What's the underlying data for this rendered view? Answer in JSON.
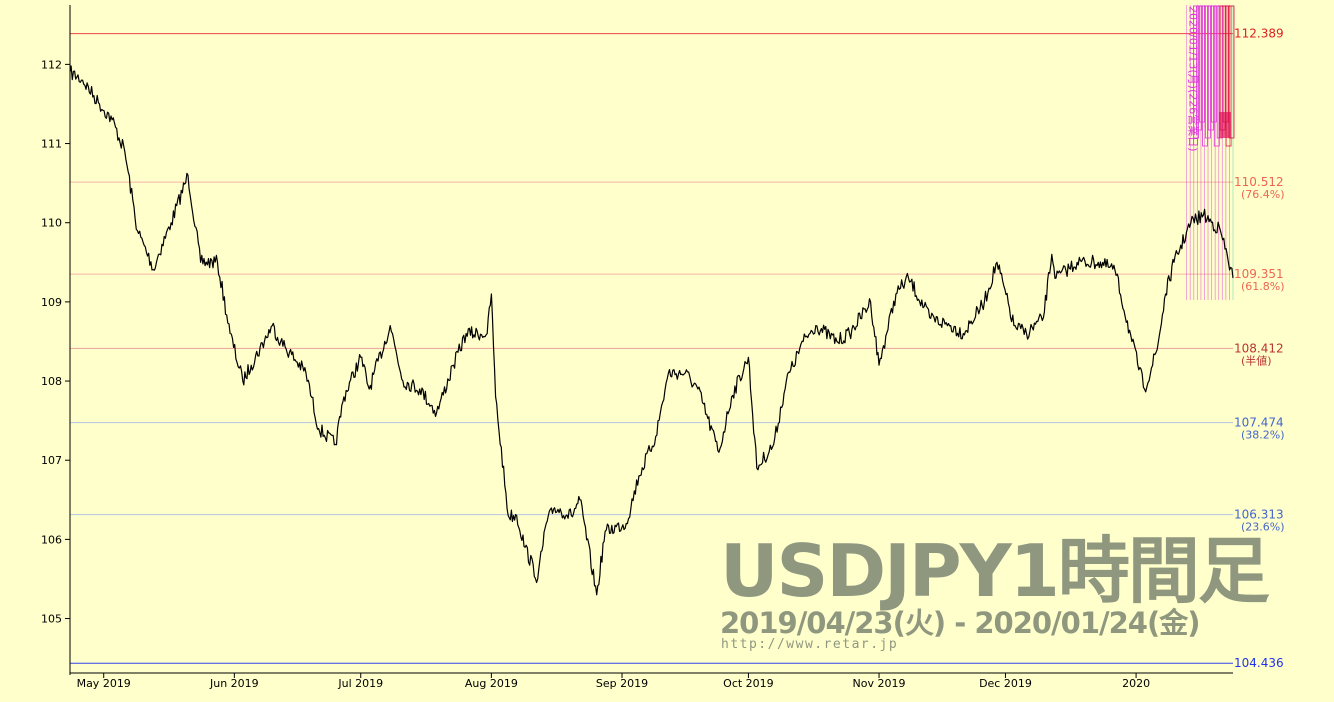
{
  "chart_data": {
    "type": "line",
    "series_style": "ohlc-1h",
    "pair": "USDJPY",
    "ylim": [
      104.35,
      112.75
    ],
    "yticks": [
      105,
      106,
      107,
      108,
      109,
      110,
      111,
      112
    ],
    "xlim": [
      "2019-04-23",
      "2020-01-24"
    ],
    "xticks": [
      {
        "date": "2019-05-01",
        "label": "May 2019"
      },
      {
        "date": "2019-06-01",
        "label": "Jun 2019"
      },
      {
        "date": "2019-07-01",
        "label": "Jul 2019"
      },
      {
        "date": "2019-08-01",
        "label": "Aug 2019"
      },
      {
        "date": "2019-09-01",
        "label": "Sep 2019"
      },
      {
        "date": "2019-10-01",
        "label": "Oct 2019"
      },
      {
        "date": "2019-11-01",
        "label": "Nov 2019"
      },
      {
        "date": "2019-12-01",
        "label": "Dec 2019"
      },
      {
        "date": "2020-01-01",
        "label": "2020"
      }
    ],
    "levels": [
      {
        "value": 112.389,
        "label": "112.389",
        "pct": "",
        "color": "#dd2222",
        "line": "#ee4444"
      },
      {
        "value": 110.512,
        "label": "110.512",
        "pct": "(76.4%)",
        "color": "#ee6655",
        "line": "#f4b4a8"
      },
      {
        "value": 109.351,
        "label": "109.351",
        "pct": "(61.8%)",
        "color": "#ee6655",
        "line": "#f4b4a8"
      },
      {
        "value": 108.412,
        "label": "108.412",
        "pct": "(半値)",
        "color": "#bb3333",
        "line": "#e8a0a0"
      },
      {
        "value": 107.474,
        "label": "107.474",
        "pct": "(38.2%)",
        "color": "#4466cc",
        "line": "#b4c4e4"
      },
      {
        "value": 106.313,
        "label": "106.313",
        "pct": "(23.6%)",
        "color": "#4466cc",
        "line": "#b4c4e4"
      },
      {
        "value": 104.436,
        "label": "104.436",
        "pct": "",
        "color": "#2233ee",
        "line": "#3344ee"
      }
    ],
    "x": [
      "2019-04-23",
      "2019-04-26",
      "2019-04-30",
      "2019-05-03",
      "2019-05-06",
      "2019-05-09",
      "2019-05-13",
      "2019-05-14",
      "2019-05-17",
      "2019-05-21",
      "2019-05-24",
      "2019-05-28",
      "2019-05-31",
      "2019-06-03",
      "2019-06-05",
      "2019-06-10",
      "2019-06-12",
      "2019-06-18",
      "2019-06-21",
      "2019-06-25",
      "2019-06-27",
      "2019-07-01",
      "2019-07-03",
      "2019-07-08",
      "2019-07-11",
      "2019-07-15",
      "2019-07-19",
      "2019-07-23",
      "2019-07-26",
      "2019-07-31",
      "2019-08-01",
      "2019-08-02",
      "2019-08-05",
      "2019-08-07",
      "2019-08-09",
      "2019-08-12",
      "2019-08-14",
      "2019-08-16",
      "2019-08-20",
      "2019-08-22",
      "2019-08-26",
      "2019-08-28",
      "2019-09-02",
      "2019-09-05",
      "2019-09-09",
      "2019-09-12",
      "2019-09-16",
      "2019-09-19",
      "2019-09-24",
      "2019-09-27",
      "2019-10-01",
      "2019-10-03",
      "2019-10-07",
      "2019-10-10",
      "2019-10-14",
      "2019-10-17",
      "2019-10-22",
      "2019-10-25",
      "2019-10-30",
      "2019-11-01",
      "2019-11-05",
      "2019-11-08",
      "2019-11-13",
      "2019-11-18",
      "2019-11-21",
      "2019-11-26",
      "2019-11-29",
      "2019-12-03",
      "2019-12-06",
      "2019-12-10",
      "2019-12-12",
      "2019-12-13",
      "2019-12-18",
      "2019-12-23",
      "2019-12-27",
      "2019-12-31",
      "2020-01-03",
      "2020-01-06",
      "2020-01-08",
      "2020-01-10",
      "2020-01-14",
      "2020-01-17",
      "2020-01-21",
      "2020-01-24"
    ],
    "y": [
      111.9,
      111.8,
      111.5,
      111.3,
      110.9,
      109.9,
      109.4,
      109.6,
      110.0,
      110.6,
      109.5,
      109.5,
      108.6,
      108.0,
      108.2,
      108.7,
      108.5,
      108.1,
      107.4,
      107.2,
      107.8,
      108.3,
      107.9,
      108.7,
      108.0,
      107.9,
      107.6,
      108.2,
      108.6,
      108.6,
      109.1,
      107.8,
      106.3,
      106.3,
      105.9,
      105.5,
      106.2,
      106.4,
      106.3,
      106.5,
      105.3,
      106.1,
      106.2,
      106.8,
      107.3,
      108.1,
      108.1,
      107.9,
      107.1,
      107.8,
      108.3,
      106.9,
      107.2,
      108.0,
      108.5,
      108.7,
      108.5,
      108.6,
      109.0,
      108.2,
      109.1,
      109.3,
      108.8,
      108.7,
      108.6,
      109.0,
      109.5,
      108.7,
      108.6,
      108.8,
      109.6,
      109.3,
      109.5,
      109.5,
      109.4,
      108.5,
      107.9,
      108.4,
      109.1,
      109.5,
      110.0,
      110.1,
      109.9,
      109.3
    ],
    "events": {
      "stack_count": 14,
      "first_label": "2020/01/13(月)(226営業日)",
      "color": "#dd33dd"
    },
    "watermark": {
      "title": "USDJPY1時間足",
      "range": "2019/04/23(火) - 2020/01/24(金)",
      "url": "http://www.retar.jp"
    },
    "grid": false
  }
}
